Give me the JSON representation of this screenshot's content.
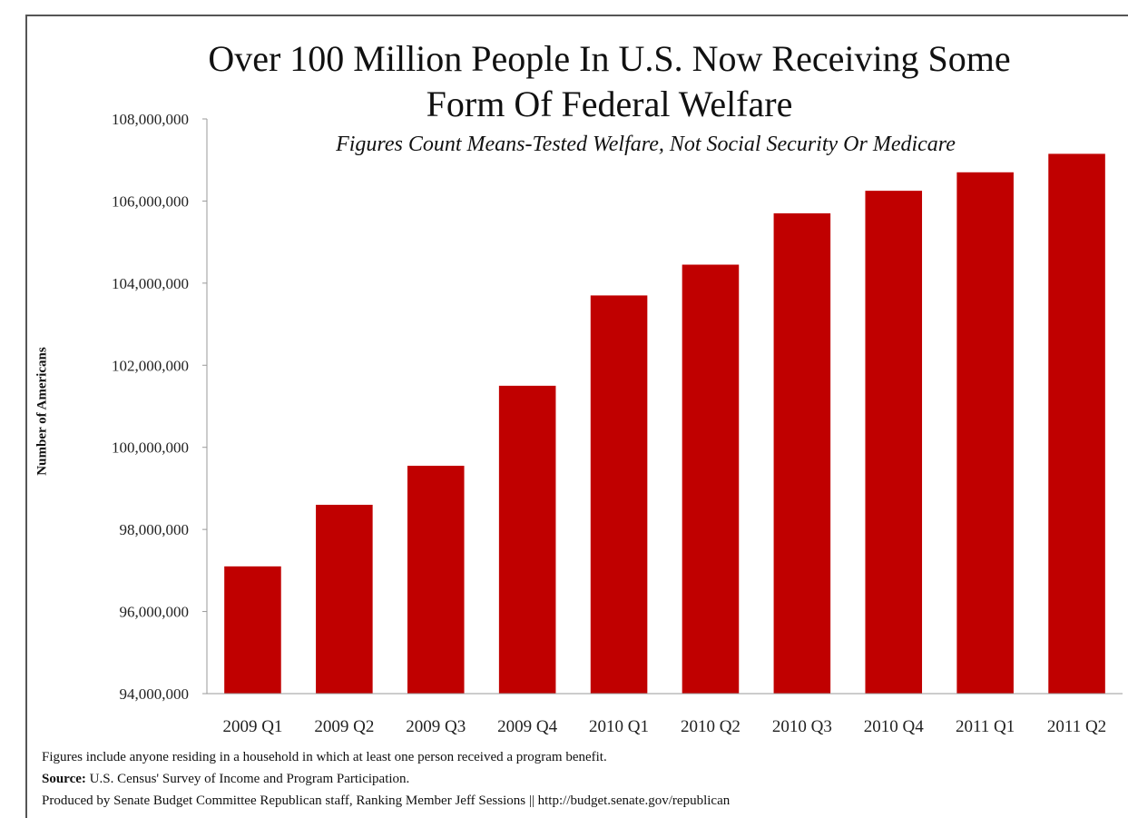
{
  "chart_data": {
    "type": "bar",
    "title_lines": [
      "Over 100 Million People In U.S. Now Receiving Some",
      "Form Of Federal Welfare"
    ],
    "subtitle": "Figures Count Means-Tested Welfare, Not Social Security Or Medicare",
    "ylabel": "Number of Americans",
    "xlabel": "",
    "categories": [
      "2009 Q1",
      "2009 Q2",
      "2009 Q3",
      "2009 Q4",
      "2010 Q1",
      "2010 Q2",
      "2010 Q3",
      "2010 Q4",
      "2011 Q1",
      "2011 Q2"
    ],
    "values": [
      97100000,
      98600000,
      99550000,
      101500000,
      103700000,
      104450000,
      105700000,
      106250000,
      106700000,
      107150000
    ],
    "ylim": [
      94000000,
      108000000
    ],
    "yticks": [
      94000000,
      96000000,
      98000000,
      100000000,
      102000000,
      104000000,
      106000000,
      108000000
    ],
    "ytick_labels": [
      "94,000,000",
      "96,000,000",
      "98,000,000",
      "100,000,000",
      "102,000,000",
      "104,000,000",
      "106,000,000",
      "108,000,000"
    ],
    "bar_color": "#c00000",
    "grid": false,
    "legend": "none"
  },
  "footnotes": {
    "note": "Figures include anyone residing in a household in which at least one person received a program benefit.",
    "source_label": "Source:",
    "source_text": " U.S. Census' Survey of Income and Program Participation.",
    "produced": "Produced by Senate Budget Committee Republican staff, Ranking Member Jeff Sessions || http://budget.senate.gov/republican"
  }
}
